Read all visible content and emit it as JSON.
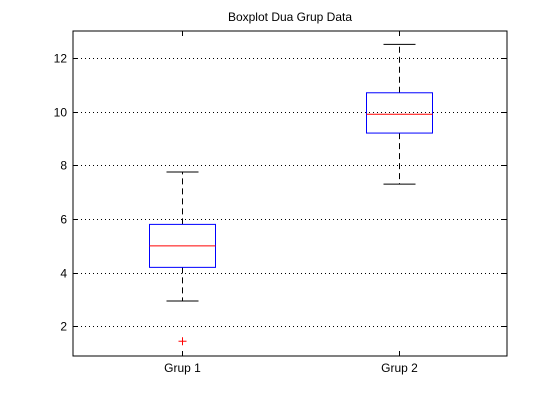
{
  "chart_data": {
    "type": "boxplot",
    "title": "Boxplot Dua Grup Data",
    "xlabel": "",
    "ylabel": "",
    "ylim": [
      0.9,
      13
    ],
    "yticks": [
      2,
      4,
      6,
      8,
      10,
      12
    ],
    "grid": "horizontal dotted",
    "categories": [
      "Grup 1",
      "Grup 2"
    ],
    "boxes": [
      {
        "category": "Grup 1",
        "whisker_low": 2.95,
        "q1": 4.2,
        "median": 5.0,
        "q3": 5.8,
        "whisker_high": 7.75,
        "outliers": [
          1.45
        ]
      },
      {
        "category": "Grup 2",
        "whisker_low": 7.3,
        "q1": 9.2,
        "median": 9.9,
        "q3": 10.7,
        "whisker_high": 12.5,
        "outliers": []
      }
    ],
    "colors": {
      "box": "#0000ff",
      "median": "#ff0000",
      "whisker": "#000000",
      "outlier": "#ff0000",
      "grid": "#000000"
    }
  }
}
